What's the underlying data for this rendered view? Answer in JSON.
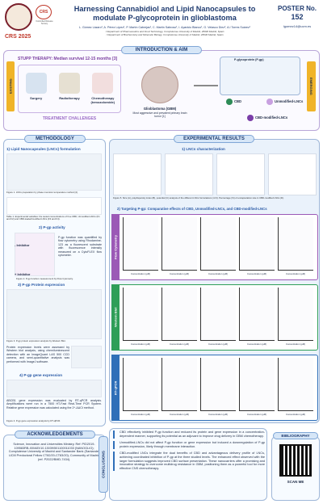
{
  "header": {
    "title": "Harnessing Cannabidiol and Lipid Nanocapsules to modulate P-glycoprotein in glioblastoma",
    "authors": "L. Gómez Lázaro¹, A. Pérez López¹, P. Martín Cabrejas¹, C. Martín Sabroso¹, I. Aparicio Blanco¹, G. Velasco Díez², A.I Torres Suárez¹",
    "affiliations": [
      "¹ Department of Pharmaceutics and Food Technology, Complutense University of Madrid, 28040 Madrid, Spain",
      "² Department of Biochemistry and Molecular Biology, Complutense University of Madrid, 28040 Madrid, Spain"
    ],
    "poster_label": "POSTER No.",
    "poster_number": "152",
    "email": "lgomez14@ucm.es",
    "logo_crs": "CRS",
    "logo_crs_sub": "Controlled Release Society",
    "logo_event": "CRS 2025"
  },
  "intro": {
    "title": "INTRODUCTION & AIM",
    "stupp": "STUPP THERAPY: Median survival 12-15 months [3]",
    "existing": "EXISTING",
    "treatments": [
      "Surgery",
      "Radiotherapy",
      "Chemotherapy (temozolomide)"
    ],
    "challenges": "TREATMENT CHALLENGES",
    "gbm": "Glioblastoma (GBM)",
    "gbm_desc": "Most aggressive and prevalent primary brain tumor [1]",
    "pgp": "P-glycoprotein (P-gp)",
    "emerging": "EMERGING",
    "agents": [
      "CBD",
      "Unmodified-LNCs",
      "CBD-modified-LNCs"
    ]
  },
  "methodology": {
    "title": "METHODOLOGY",
    "s1": "1) Lipid Nanocapsules (LNCs) formulation",
    "fig1": "Figure 1. LNCs preparation by phase inversion temperature method [4].",
    "table1": "Table 1. Experimental variables: the tested concentrations of free CBD, Unmodified-LNCs (F1 and F2) and CBD-loaded/modified LNCs (F3 and F4).",
    "s2": "2) P-gp activity",
    "minus": "- Inhibitor",
    "plus": "+ Inhibitor",
    "t2": "P-gp function was quantified by flow cytometry using Rhodamine-123 as a fluorescent substrate with fluorescence intensity measured on a CytoFLEX flow cytometer.",
    "fig2": "Figure 2. P-gp function measurement by Flow Cytometry.",
    "s3": "3) P-gp Protein expression",
    "t3": "Protein expression levels were assessed by Western blot analysis, using chemiluminescent detection with an ImageQuant LAS 500 CCD camera, and semi-quantitative analysis was performed with ImageJ software.",
    "fig3": "Figure 3. P-gp protein expression analysis by Western Blot.",
    "s4": "4) P-gp gene expression",
    "t4": "ABCB1 gene expression was evaluated by RT-qPCR analysis. Amplifications were run in a 7500 HT-Fast Real-Time PCR System. Relative gene expression was calculated using the 2^-ΔΔCt method.",
    "fig4": "Figure 4. P-gp gene expression analysis by RT-qPCR."
  },
  "ack": {
    "title": "ACKNOWLEDGEMENTS",
    "text": "Science, Innovation and Universities Ministry. Ref: PID2019-109583RB-I00/AEI/10.13039/501100011033 (NANOGLIO); Complutense University of Madrid and Santander Bank (Santander UCM Predoctoral Fellow CT82/20-CT83/20); Community of Madrid (ref. P2022/BMD-7434)."
  },
  "results": {
    "title": "EXPERIMENTAL RESULTS",
    "s1": "1) LNCs characterization",
    "fig5": "Figure 5. Size (A), polydispersity index (B), potential (C) analysis of the different LNCs formulations (n=3). Percentage (%) of encapsulation rate in CBD-modified LNCs (D).",
    "s2": "2) Targeting P-gp: Comparative effects of CBD, Unmodified-LNCs, and CBD-modified-LNCs",
    "rows": [
      "Flow Cytometry",
      "Western Blot",
      "RT-qPCR"
    ],
    "xlabel": "Concentration (µM)"
  },
  "conclusions": {
    "title": "CONCLUSIONS",
    "paragraphs": [
      "CBD effectively inhibited P-gp function and reduced its protein and gene expression in a concentration-dependent manner, supporting its potential as an adjuvant to improve drug delivery in GBM chemotherapy.",
      "Unmodified-LNCs did not affect P-gp function or gene expression but induced a downregulation of P-gp protein expression, likely through membrane interaction.",
      "CBD-modified LNCs integrate the dual benefits of CBD and advantageous delivery profile of LNCs, achieving coordinated inhibition of P-gp at the three studied levels. The enhanced effect observed with the larger formulation suggests improved CBD surface presentation. These nanocarriers offer a promising and innovative strategy to overcome multidrug resistance in GBM, positioning them as a powerful tool for more effective CNS chemotherapy."
    ],
    "bibliography": "BIBLIOGRAPHY",
    "scan": "SCAN ME"
  }
}
